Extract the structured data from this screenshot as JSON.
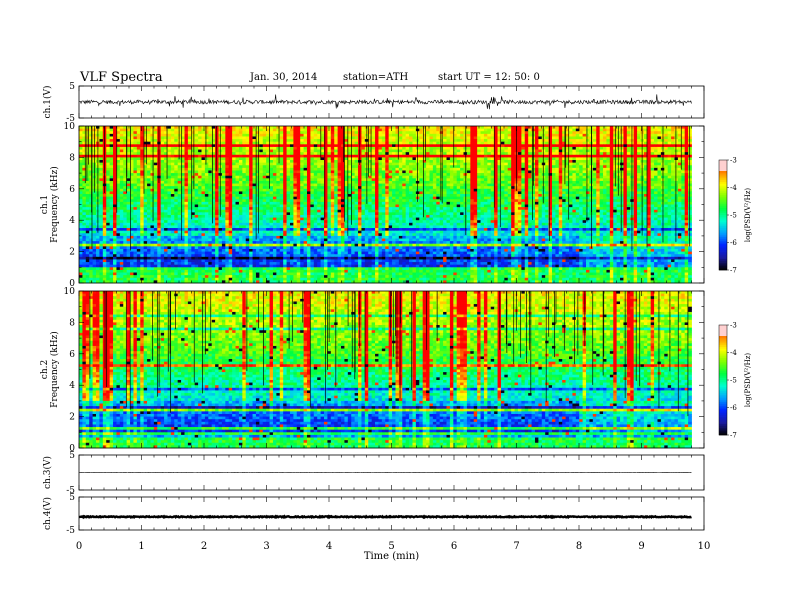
{
  "header": {
    "title": "VLF Spectra",
    "date": "Jan. 30, 2014",
    "station": "station=ATH",
    "start": "start  UT =   12: 50: 0"
  },
  "chart_data": [
    {
      "type": "line",
      "name": "ch1-waveform",
      "ylabel": "ch.1(V)",
      "ylim": [
        -5,
        5
      ],
      "ytick_labels": [
        "5",
        "-5"
      ],
      "xlim": [
        0,
        10
      ],
      "data_end_min": 9.8,
      "baseline_v": 0.0,
      "noise_v": 0.6
    },
    {
      "type": "heatmap",
      "name": "ch1-spectrogram",
      "ylabel_line1": "ch.1",
      "ylabel_line2": "Frequency (kHz)",
      "ylim": [
        0,
        10
      ],
      "ytick_labels": [
        "0",
        "2",
        "4",
        "6",
        "8",
        "10"
      ],
      "xlim": [
        0,
        10
      ],
      "colorbar": {
        "label": "log(PSD(V²/Hz)",
        "range": [
          -7,
          -3
        ],
        "tick_labels": [
          "-3",
          "-4",
          "-5",
          "-6",
          "-7"
        ]
      }
    },
    {
      "type": "heatmap",
      "name": "ch2-spectrogram",
      "ylabel_line1": "ch.2",
      "ylabel_line2": "Frequency (kHz)",
      "ylim": [
        0,
        10
      ],
      "ytick_labels": [
        "0",
        "2",
        "4",
        "6",
        "8",
        "10"
      ],
      "xlim": [
        0,
        10
      ],
      "colorbar": {
        "label": "log(PSD(V²/Hz)",
        "range": [
          -7,
          -3
        ],
        "tick_labels": [
          "-3",
          "-4",
          "-5",
          "-6",
          "-7"
        ]
      }
    },
    {
      "type": "line",
      "name": "ch3-waveform",
      "ylabel": "ch.3(V)",
      "ylim": [
        -5,
        5
      ],
      "ytick_labels": [
        "5",
        "-5"
      ],
      "xlim": [
        0,
        10
      ],
      "data_end_min": 9.8,
      "baseline_v": 0.0,
      "noise_v": 0.05
    },
    {
      "type": "line",
      "name": "ch4-waveform",
      "ylabel": "ch.4(V)",
      "ylim": [
        -5,
        5
      ],
      "ytick_labels": [
        "5",
        "-5"
      ],
      "xlim": [
        0,
        10
      ],
      "data_end_min": 9.8,
      "baseline_v": -1.0,
      "noise_v": 0.15
    }
  ],
  "x_axis": {
    "label": "Time (min)",
    "tick_labels": [
      "0",
      "1",
      "2",
      "3",
      "4",
      "5",
      "6",
      "7",
      "8",
      "9",
      "10"
    ]
  },
  "colors": {
    "colormap": [
      "#000000",
      "#1a1a9e",
      "#0022ff",
      "#00a0ff",
      "#00ffd0",
      "#00ff40",
      "#80ff00",
      "#ffff00",
      "#ff8000",
      "#ff0000",
      "#ffffff"
    ]
  }
}
